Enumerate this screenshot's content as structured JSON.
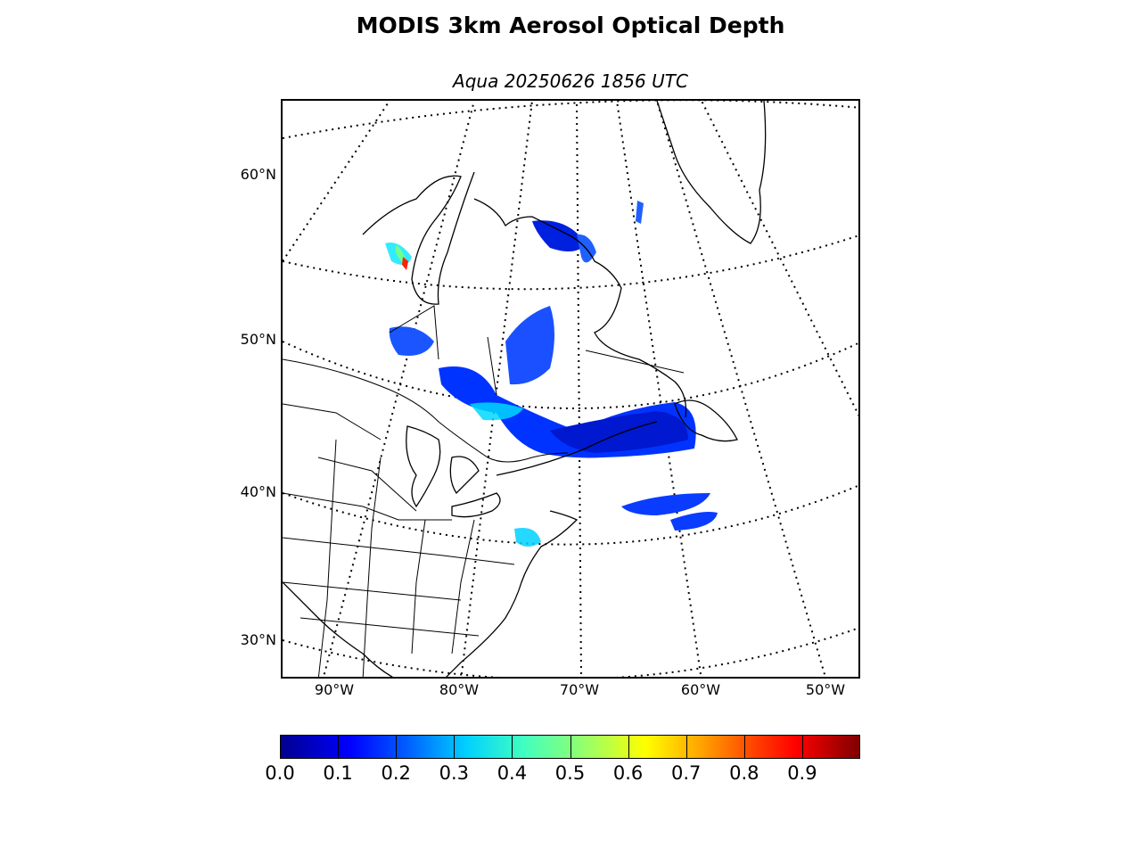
{
  "title": "MODIS 3km Aerosol Optical Depth",
  "subtitle": "Aqua 20250626 1856 UTC",
  "map": {
    "projection": "lambert-conformal",
    "graticule_style": "dotted",
    "lat_labels": [
      "60°N",
      "50°N",
      "40°N",
      "30°N"
    ],
    "lon_labels": [
      "90°W",
      "80°W",
      "70°W",
      "60°W",
      "50°W"
    ]
  },
  "colorbar": {
    "colormap": "jet",
    "min": 0.0,
    "max": 1.0,
    "tick_labels": [
      "0.0",
      "0.1",
      "0.2",
      "0.3",
      "0.4",
      "0.5",
      "0.6",
      "0.7",
      "0.8",
      "0.9"
    ]
  },
  "colors": {
    "low": "#00008f",
    "mid_low": "#0040ff",
    "mid": "#00e0ff",
    "mid_high": "#80ff80",
    "high": "#ffe000",
    "max": "#800000"
  }
}
